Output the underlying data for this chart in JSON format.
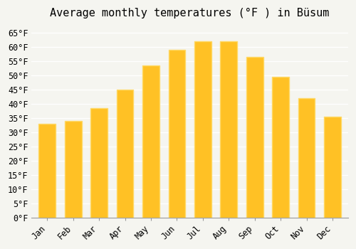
{
  "title": "Average monthly temperatures (°F ) in Büsum",
  "months": [
    "Jan",
    "Feb",
    "Mar",
    "Apr",
    "May",
    "Jun",
    "Jul",
    "Aug",
    "Sep",
    "Oct",
    "Nov",
    "Dec"
  ],
  "values": [
    33.0,
    34.0,
    38.5,
    45.0,
    53.5,
    59.0,
    62.0,
    62.0,
    56.5,
    49.5,
    42.0,
    35.5
  ],
  "bar_color_face": "#FFC125",
  "bar_color_edge": "#FFD966",
  "ylim": [
    0,
    68
  ],
  "yticks": [
    0,
    5,
    10,
    15,
    20,
    25,
    30,
    35,
    40,
    45,
    50,
    55,
    60,
    65
  ],
  "ytick_labels": [
    "0°F",
    "5°F",
    "10°F",
    "15°F",
    "20°F",
    "25°F",
    "30°F",
    "35°F",
    "40°F",
    "45°F",
    "50°F",
    "55°F",
    "60°F",
    "65°F"
  ],
  "background_color": "#f5f5f0",
  "grid_color": "#ffffff",
  "title_fontsize": 11,
  "tick_fontsize": 8.5,
  "font_family": "monospace"
}
